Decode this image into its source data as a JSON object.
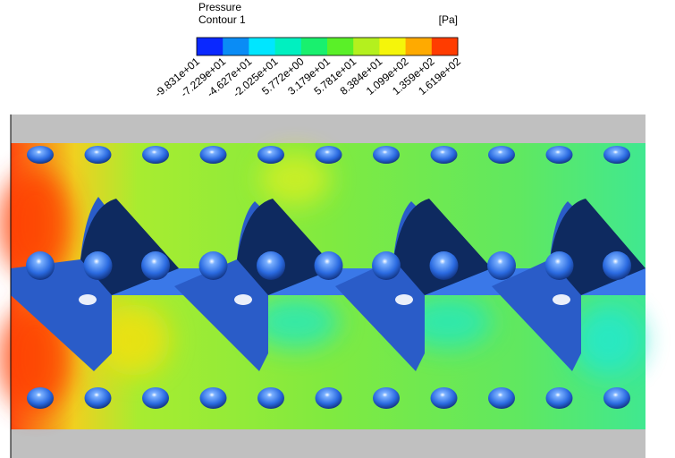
{
  "legend": {
    "title": "Pressure",
    "subtitle": "Contour 1",
    "unit": "[Pa]",
    "colors": [
      "#0a28ff",
      "#0a8cf5",
      "#00e6ff",
      "#00f0c0",
      "#19f06e",
      "#5af028",
      "#b4f01e",
      "#f5f50a",
      "#ffaa00",
      "#ff3c00"
    ],
    "labels": [
      "-9.831e+01",
      "-7.229e+01",
      "-4.627e+01",
      "-2.025e+01",
      "5.772e+00",
      "3.179e+01",
      "5.781e+01",
      "8.384e+01",
      "1.099e+02",
      "1.359e+02",
      "1.619e+02"
    ]
  }
}
